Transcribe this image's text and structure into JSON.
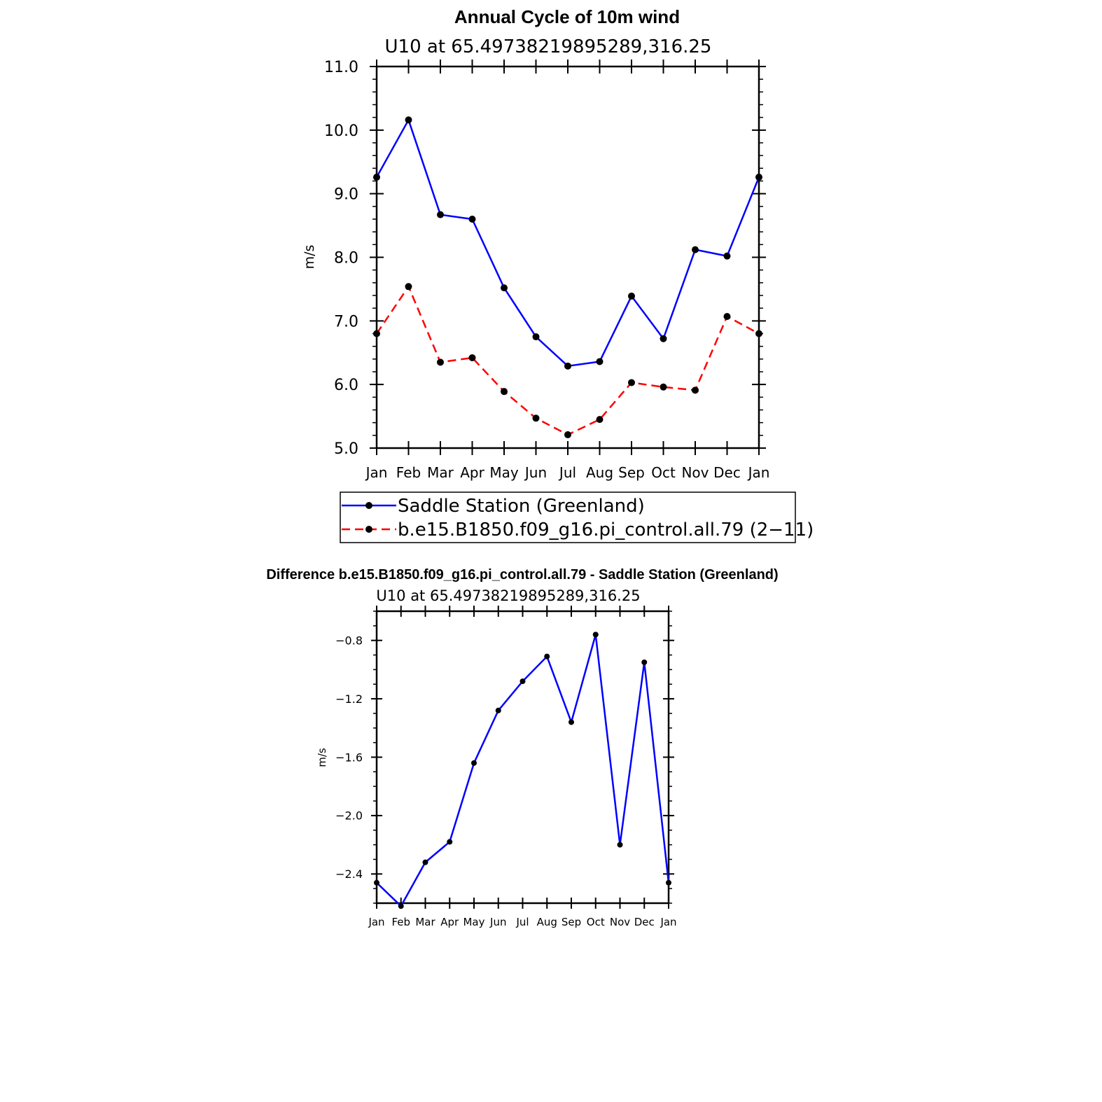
{
  "chart_data": [
    {
      "type": "line",
      "title": "Annual Cycle of 10m wind",
      "subtitle": "U10 at 65.49738219895289,316.25",
      "xlabel": "",
      "ylabel": "m/s",
      "categories": [
        "Jan",
        "Feb",
        "Mar",
        "Apr",
        "May",
        "Jun",
        "Jul",
        "Aug",
        "Sep",
        "Oct",
        "Nov",
        "Dec",
        "Jan"
      ],
      "ylim": [
        5.0,
        11.0
      ],
      "yticks": [
        "5.0",
        "6.0",
        "7.0",
        "8.0",
        "9.0",
        "10.0",
        "11.0"
      ],
      "legend_position": "below",
      "series": [
        {
          "name": "Saddle Station (Greenland)",
          "color": "#0000ff",
          "dash": "solid",
          "values": [
            9.26,
            10.16,
            8.67,
            8.6,
            7.52,
            6.75,
            6.29,
            6.36,
            7.39,
            6.72,
            8.12,
            8.02,
            9.26
          ]
        },
        {
          "name": "b.e15.B1850.f09_g16.pi_control.all.79 (2−11)",
          "color": "#ff0000",
          "dash": "dashed",
          "values": [
            6.8,
            7.54,
            6.35,
            6.42,
            5.89,
            5.47,
            5.21,
            5.45,
            6.03,
            5.96,
            5.91,
            7.07,
            6.8
          ]
        }
      ]
    },
    {
      "type": "line",
      "title": "Difference b.e15.B1850.f09_g16.pi_control.all.79 - Saddle Station (Greenland)",
      "subtitle": "U10 at 65.49738219895289,316.25",
      "xlabel": "",
      "ylabel": "m/s",
      "categories": [
        "Jan",
        "Feb",
        "Mar",
        "Apr",
        "May",
        "Jun",
        "Jul",
        "Aug",
        "Sep",
        "Oct",
        "Nov",
        "Dec",
        "Jan"
      ],
      "ylim": [
        -2.6,
        -0.6
      ],
      "yticks": [
        "-2.4",
        "-2.0",
        "-1.6",
        "-1.2",
        "-0.8"
      ],
      "series": [
        {
          "color": "#0000ff",
          "dash": "solid",
          "values": [
            -2.46,
            -2.62,
            -2.32,
            -2.18,
            -1.64,
            -1.28,
            -1.08,
            -0.91,
            -1.36,
            -0.76,
            -2.2,
            -0.95,
            -2.46
          ]
        }
      ]
    }
  ]
}
